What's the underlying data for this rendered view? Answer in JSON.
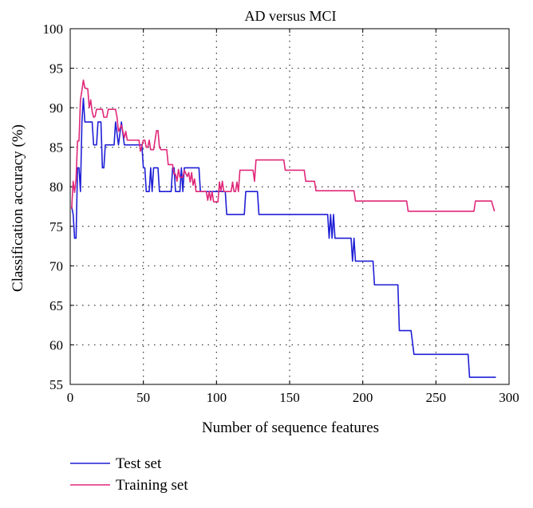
{
  "chart_data": {
    "type": "line",
    "title": "AD versus MCI",
    "xlabel": "Number of sequence features",
    "ylabel": "Classification accuracy (%)",
    "xlim": [
      0,
      300
    ],
    "ylim": [
      55,
      100
    ],
    "xticks": [
      "0",
      "50",
      "100",
      "150",
      "200",
      "250",
      "300"
    ],
    "yticks": [
      "55",
      "60",
      "65",
      "70",
      "75",
      "80",
      "85",
      "90",
      "95",
      "100"
    ],
    "grid": true,
    "legend": "bottom-left",
    "series": [
      {
        "name": "Test set",
        "color": "#1f1fd6",
        "points": [
          [
            1,
            77.5
          ],
          [
            2,
            76.5
          ],
          [
            3,
            73.5
          ],
          [
            4,
            73.5
          ],
          [
            5,
            82.4
          ],
          [
            6,
            82.4
          ],
          [
            7,
            79.4
          ],
          [
            8,
            88.2
          ],
          [
            9,
            91.2
          ],
          [
            10,
            88.2
          ],
          [
            15,
            88.2
          ],
          [
            16,
            85.3
          ],
          [
            18,
            85.3
          ],
          [
            19,
            88.2
          ],
          [
            21,
            88.2
          ],
          [
            22,
            82.4
          ],
          [
            23,
            82.4
          ],
          [
            24,
            85.3
          ],
          [
            30,
            85.3
          ],
          [
            31,
            88.2
          ],
          [
            33,
            85.3
          ],
          [
            35,
            88.2
          ],
          [
            37,
            85.3
          ],
          [
            49,
            85.3
          ],
          [
            50,
            82.4
          ],
          [
            51,
            82.4
          ],
          [
            52,
            79.4
          ],
          [
            54,
            79.4
          ],
          [
            55,
            82.4
          ],
          [
            56,
            79.4
          ],
          [
            57,
            82.4
          ],
          [
            60,
            82.4
          ],
          [
            61,
            79.4
          ],
          [
            69,
            79.4
          ],
          [
            70,
            82.4
          ],
          [
            71,
            82.4
          ],
          [
            72,
            79.4
          ],
          [
            75,
            79.4
          ],
          [
            76,
            82.4
          ],
          [
            77,
            79.4
          ],
          [
            78,
            82.4
          ],
          [
            88,
            82.4
          ],
          [
            89,
            79.4
          ],
          [
            106,
            79.4
          ],
          [
            107,
            76.5
          ],
          [
            119,
            76.5
          ],
          [
            120,
            79.4
          ],
          [
            128,
            79.4
          ],
          [
            129,
            76.5
          ],
          [
            176,
            76.5
          ],
          [
            177,
            73.5
          ],
          [
            178,
            76.5
          ],
          [
            179,
            73.5
          ],
          [
            180,
            76.5
          ],
          [
            181,
            73.5
          ],
          [
            192,
            73.5
          ],
          [
            193,
            70.6
          ],
          [
            194,
            73.5
          ],
          [
            195,
            70.6
          ],
          [
            207,
            70.6
          ],
          [
            208,
            67.6
          ],
          [
            224,
            67.6
          ],
          [
            225,
            61.8
          ],
          [
            233,
            61.8
          ],
          [
            235,
            58.8
          ],
          [
            272,
            58.8
          ],
          [
            273,
            55.9
          ],
          [
            291,
            55.9
          ]
        ]
      },
      {
        "name": "Training set",
        "color": "#e0287a",
        "points": [
          [
            1,
            77.2
          ],
          [
            2,
            80.7
          ],
          [
            3,
            79.3
          ],
          [
            4,
            81.0
          ],
          [
            5,
            85.8
          ],
          [
            6,
            85.8
          ],
          [
            7,
            91.0
          ],
          [
            8,
            92.2
          ],
          [
            9,
            93.5
          ],
          [
            10,
            92.5
          ],
          [
            12,
            92.4
          ],
          [
            13,
            90.0
          ],
          [
            14,
            91.0
          ],
          [
            15,
            89.5
          ],
          [
            16,
            88.8
          ],
          [
            17,
            88.9
          ],
          [
            18,
            89.8
          ],
          [
            22,
            89.8
          ],
          [
            23,
            88.8
          ],
          [
            25,
            88.8
          ],
          [
            26,
            89.8
          ],
          [
            31,
            89.8
          ],
          [
            32,
            88.8
          ],
          [
            33,
            87.0
          ],
          [
            35,
            87.8
          ],
          [
            37,
            86.2
          ],
          [
            38,
            87.0
          ],
          [
            39,
            85.9
          ],
          [
            47,
            85.9
          ],
          [
            48,
            84.5
          ],
          [
            50,
            85.9
          ],
          [
            51,
            85.9
          ],
          [
            52,
            85.0
          ],
          [
            53,
            85.0
          ],
          [
            54,
            85.9
          ],
          [
            55,
            84.7
          ],
          [
            57,
            84.7
          ],
          [
            58,
            85.9
          ],
          [
            59,
            87.1
          ],
          [
            60,
            87.1
          ],
          [
            61,
            85.0
          ],
          [
            62,
            84.7
          ],
          [
            66,
            84.7
          ],
          [
            67,
            82.8
          ],
          [
            70,
            82.8
          ],
          [
            71,
            81.6
          ],
          [
            72,
            81.6
          ],
          [
            73,
            80.7
          ],
          [
            74,
            82.2
          ],
          [
            75,
            81.2
          ],
          [
            77,
            81.2
          ],
          [
            78,
            82.1
          ],
          [
            80,
            81.3
          ],
          [
            81,
            81.8
          ],
          [
            82,
            80.6
          ],
          [
            83,
            81.8
          ],
          [
            84,
            80.2
          ],
          [
            85,
            81.0
          ],
          [
            86,
            79.4
          ],
          [
            93,
            79.4
          ],
          [
            94,
            78.3
          ],
          [
            95,
            79.4
          ],
          [
            96,
            78.3
          ],
          [
            97,
            79.4
          ],
          [
            98,
            78.1
          ],
          [
            101,
            78.1
          ],
          [
            102,
            80.6
          ],
          [
            103,
            79.4
          ],
          [
            104,
            80.7
          ],
          [
            105,
            79.4
          ],
          [
            110,
            79.4
          ],
          [
            111,
            80.6
          ],
          [
            112,
            79.4
          ],
          [
            113,
            79.4
          ],
          [
            114,
            80.6
          ],
          [
            115,
            79.4
          ],
          [
            116,
            82.1
          ],
          [
            125,
            82.1
          ],
          [
            126,
            80.7
          ],
          [
            127,
            83.4
          ],
          [
            146,
            83.4
          ],
          [
            147,
            82.1
          ],
          [
            160,
            82.1
          ],
          [
            161,
            80.7
          ],
          [
            167,
            80.7
          ],
          [
            168,
            79.5
          ],
          [
            194,
            79.5
          ],
          [
            195,
            78.2
          ],
          [
            230,
            78.2
          ],
          [
            231,
            76.9
          ],
          [
            276,
            76.9
          ],
          [
            277,
            78.2
          ],
          [
            288,
            78.2
          ],
          [
            290,
            76.9
          ]
        ]
      }
    ]
  }
}
